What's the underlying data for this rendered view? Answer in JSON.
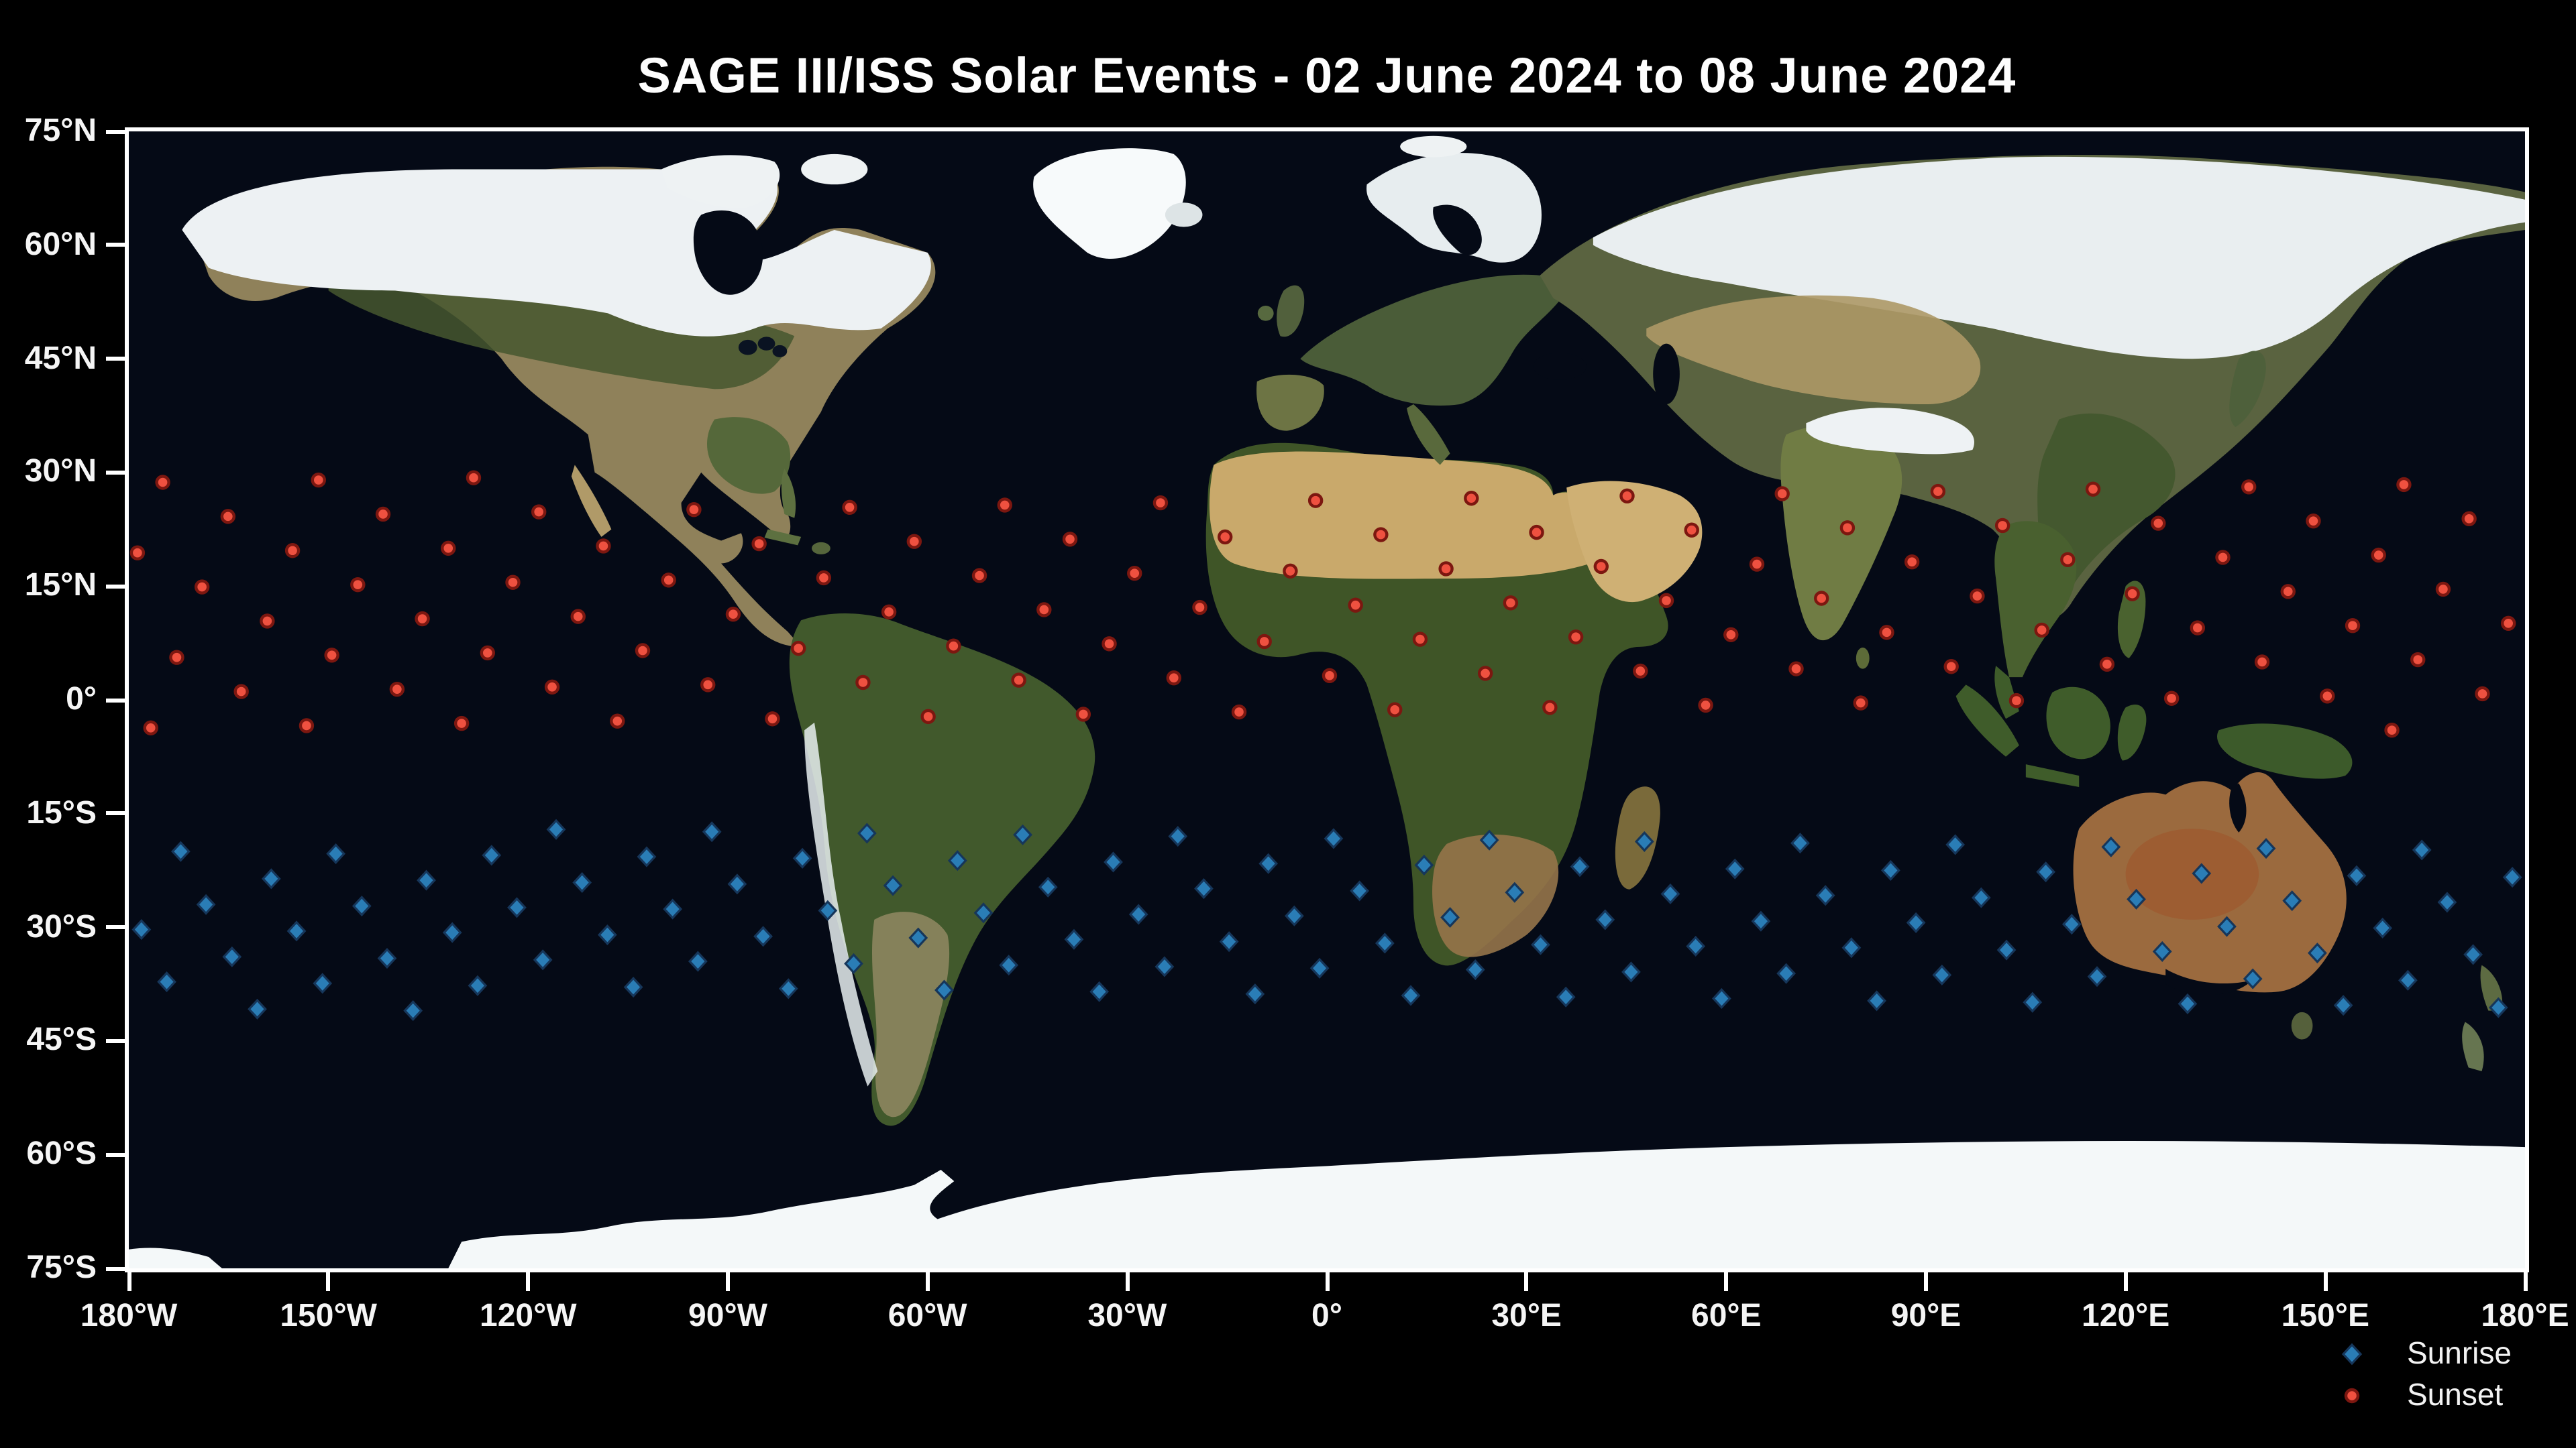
{
  "title": "SAGE III/ISS Solar Events - 02 June 2024 to 08 June 2024",
  "colors": {
    "background": "#000000",
    "ocean": "#050a16",
    "frame": "#ffffff",
    "tick_text": "#f5f5f5",
    "sunrise_fill": "#2a7db6",
    "sunrise_edge": "#16365a",
    "sunset_fill": "#ef5140",
    "sunset_edge": "#7c1710"
  },
  "chart_data": {
    "type": "scatter",
    "title": "SAGE III/ISS Solar Events - 02 June 2024 to 08 June 2024",
    "basemap": "blue-marble-satellite-world-map",
    "xlim": [
      -180,
      180
    ],
    "ylim": [
      -75,
      75
    ],
    "grid": false,
    "legend_position": "below-right-of-map",
    "x_tick_values": [
      -180,
      -150,
      -120,
      -90,
      -60,
      -30,
      0,
      30,
      60,
      90,
      120,
      150,
      180
    ],
    "x_ticks": [
      "180°W",
      "150°W",
      "120°W",
      "90°W",
      "60°W",
      "30°W",
      "0°",
      "30°E",
      "60°E",
      "90°E",
      "120°E",
      "150°E",
      "180°E"
    ],
    "y_tick_values": [
      75,
      60,
      45,
      30,
      15,
      0,
      -15,
      -30,
      -45,
      -60,
      -75
    ],
    "y_ticks": [
      "75°N",
      "60°N",
      "45°N",
      "30°N",
      "15°N",
      "0°",
      "15°S",
      "30°S",
      "45°S",
      "60°S",
      "75°S"
    ],
    "legend": [
      {
        "label": "Sunrise",
        "marker": "diamond",
        "color": "#2a7db6"
      },
      {
        "label": "Sunset",
        "marker": "circle",
        "color": "#ef5140"
      }
    ],
    "series": [
      {
        "name": "Sunset",
        "marker": "circle",
        "fill": "#ef5140",
        "edge": "#7c1710",
        "points": [
          [
            -128.2,
            29.3
          ],
          [
            -151.5,
            29.0
          ],
          [
            -174.9,
            28.7
          ],
          [
            161.8,
            28.4
          ],
          [
            138.5,
            28.1
          ],
          [
            115.1,
            27.8
          ],
          [
            91.8,
            27.5
          ],
          [
            68.4,
            27.2
          ],
          [
            45.1,
            26.9
          ],
          [
            21.7,
            26.6
          ],
          [
            -1.7,
            26.3
          ],
          [
            -25.0,
            26.0
          ],
          [
            -48.4,
            25.7
          ],
          [
            -71.7,
            25.4
          ],
          [
            -95.1,
            25.1
          ],
          [
            -118.4,
            24.8
          ],
          [
            -141.8,
            24.5
          ],
          [
            -165.1,
            24.2
          ],
          [
            171.6,
            23.9
          ],
          [
            148.2,
            23.6
          ],
          [
            124.9,
            23.3
          ],
          [
            101.5,
            23.0
          ],
          [
            78.2,
            22.7
          ],
          [
            54.8,
            22.4
          ],
          [
            31.5,
            22.1
          ],
          [
            8.1,
            21.8
          ],
          [
            -15.3,
            21.5
          ],
          [
            -38.6,
            21.2
          ],
          [
            -62.0,
            20.9
          ],
          [
            -85.3,
            20.6
          ],
          [
            -108.7,
            20.3
          ],
          [
            -132.0,
            20.0
          ],
          [
            -155.4,
            19.7
          ],
          [
            -178.7,
            19.4
          ],
          [
            158.0,
            19.1
          ],
          [
            134.6,
            18.8
          ],
          [
            111.3,
            18.5
          ],
          [
            87.9,
            18.2
          ],
          [
            64.6,
            17.9
          ],
          [
            41.2,
            17.6
          ],
          [
            17.9,
            17.3
          ],
          [
            -5.5,
            17.0
          ],
          [
            -28.9,
            16.7
          ],
          [
            -52.2,
            16.4
          ],
          [
            -75.6,
            16.1
          ],
          [
            -98.9,
            15.8
          ],
          [
            -122.3,
            15.5
          ],
          [
            -145.6,
            15.2
          ],
          [
            -169.0,
            14.9
          ],
          [
            167.7,
            14.6
          ],
          [
            144.4,
            14.3
          ],
          [
            121.0,
            14.0
          ],
          [
            97.7,
            13.7
          ],
          [
            74.3,
            13.4
          ],
          [
            51.0,
            13.1
          ],
          [
            27.6,
            12.8
          ],
          [
            4.3,
            12.5
          ],
          [
            -19.1,
            12.2
          ],
          [
            -42.5,
            11.9
          ],
          [
            -65.8,
            11.6
          ],
          [
            -89.2,
            11.3
          ],
          [
            -112.5,
            11.0
          ],
          [
            -135.9,
            10.7
          ],
          [
            -159.2,
            10.4
          ],
          [
            177.5,
            10.1
          ],
          [
            154.1,
            9.8
          ],
          [
            130.8,
            9.5
          ],
          [
            107.4,
            9.2
          ],
          [
            84.1,
            8.9
          ],
          [
            60.7,
            8.6
          ],
          [
            37.4,
            8.3
          ],
          [
            14.0,
            8.0
          ],
          [
            -9.4,
            7.7
          ],
          [
            -32.7,
            7.4
          ],
          [
            -56.1,
            7.1
          ],
          [
            -79.4,
            6.8
          ],
          [
            -102.8,
            6.5
          ],
          [
            -126.1,
            6.2
          ],
          [
            -149.5,
            5.9
          ],
          [
            -172.8,
            5.6
          ],
          [
            163.9,
            5.3
          ],
          [
            140.5,
            5.0
          ],
          [
            117.2,
            4.7
          ],
          [
            93.8,
            4.4
          ],
          [
            70.5,
            4.1
          ],
          [
            47.1,
            3.8
          ],
          [
            23.8,
            3.5
          ],
          [
            0.4,
            3.2
          ],
          [
            -23.0,
            2.9
          ],
          [
            -46.3,
            2.6
          ],
          [
            -69.7,
            2.3
          ],
          [
            -93.0,
            2.0
          ],
          [
            -116.4,
            1.7
          ],
          [
            -139.7,
            1.4
          ],
          [
            -163.1,
            1.1
          ],
          [
            173.6,
            0.8
          ],
          [
            150.3,
            0.5
          ],
          [
            126.9,
            0.2
          ],
          [
            103.6,
            -0.1
          ],
          [
            80.2,
            -0.4
          ],
          [
            56.9,
            -0.7
          ],
          [
            33.5,
            -1.0
          ],
          [
            10.2,
            -1.3
          ],
          [
            -13.2,
            -1.6
          ],
          [
            -36.6,
            -1.9
          ],
          [
            -59.9,
            -2.2
          ],
          [
            -83.3,
            -2.5
          ],
          [
            -106.6,
            -2.8
          ],
          [
            -130.0,
            -3.1
          ],
          [
            -153.3,
            -3.4
          ],
          [
            -176.7,
            -3.7
          ],
          [
            160.0,
            -4.0
          ]
        ]
      },
      {
        "name": "Sunrise",
        "marker": "diamond",
        "fill": "#2a7db6",
        "edge": "#16365a",
        "points": [
          [
            -137.3,
            -41.0
          ],
          [
            -160.7,
            -40.8
          ],
          [
            176.0,
            -40.6
          ],
          [
            152.7,
            -40.3
          ],
          [
            129.3,
            -40.1
          ],
          [
            106.0,
            -39.9
          ],
          [
            82.6,
            -39.7
          ],
          [
            59.3,
            -39.4
          ],
          [
            35.9,
            -39.2
          ],
          [
            12.6,
            -39.0
          ],
          [
            -10.8,
            -38.8
          ],
          [
            -34.2,
            -38.5
          ],
          [
            -57.5,
            -38.3
          ],
          [
            -80.9,
            -38.1
          ],
          [
            -104.2,
            -37.9
          ],
          [
            -127.6,
            -37.7
          ],
          [
            -150.9,
            -37.4
          ],
          [
            -174.3,
            -37.2
          ],
          [
            162.4,
            -37.0
          ],
          [
            139.1,
            -36.8
          ],
          [
            115.7,
            -36.5
          ],
          [
            92.4,
            -36.3
          ],
          [
            69.0,
            -36.1
          ],
          [
            45.7,
            -35.9
          ],
          [
            22.3,
            -35.6
          ],
          [
            -1.1,
            -35.4
          ],
          [
            -24.4,
            -35.2
          ],
          [
            -47.8,
            -35.0
          ],
          [
            -71.1,
            -34.8
          ],
          [
            -94.5,
            -34.5
          ],
          [
            -117.8,
            -34.3
          ],
          [
            -141.2,
            -34.1
          ],
          [
            -164.5,
            -33.9
          ],
          [
            172.2,
            -33.6
          ],
          [
            148.8,
            -33.4
          ],
          [
            125.5,
            -33.2
          ],
          [
            102.1,
            -33.0
          ],
          [
            78.8,
            -32.7
          ],
          [
            55.4,
            -32.5
          ],
          [
            32.1,
            -32.3
          ],
          [
            8.7,
            -32.1
          ],
          [
            -14.7,
            -31.9
          ],
          [
            -38.0,
            -31.6
          ],
          [
            -61.4,
            -31.4
          ],
          [
            -84.7,
            -31.2
          ],
          [
            -108.1,
            -31.0
          ],
          [
            -131.4,
            -30.7
          ],
          [
            -154.8,
            -30.5
          ],
          [
            -178.1,
            -30.3
          ],
          [
            158.6,
            -30.1
          ],
          [
            135.2,
            -29.9
          ],
          [
            111.9,
            -29.6
          ],
          [
            88.5,
            -29.4
          ],
          [
            65.2,
            -29.2
          ],
          [
            41.8,
            -29.0
          ],
          [
            18.5,
            -28.7
          ],
          [
            -4.9,
            -28.5
          ],
          [
            -28.3,
            -28.3
          ],
          [
            -51.6,
            -28.1
          ],
          [
            -75.0,
            -27.8
          ],
          [
            -98.3,
            -27.6
          ],
          [
            -121.7,
            -27.4
          ],
          [
            -145.0,
            -27.2
          ],
          [
            -168.4,
            -27.0
          ],
          [
            168.3,
            -26.7
          ],
          [
            145.0,
            -26.5
          ],
          [
            121.6,
            -26.3
          ],
          [
            98.3,
            -26.1
          ],
          [
            74.9,
            -25.8
          ],
          [
            51.6,
            -25.6
          ],
          [
            28.2,
            -25.4
          ],
          [
            4.9,
            -25.2
          ],
          [
            -18.5,
            -24.9
          ],
          [
            -41.9,
            -24.7
          ],
          [
            -65.2,
            -24.5
          ],
          [
            -88.6,
            -24.3
          ],
          [
            -111.9,
            -24.1
          ],
          [
            -135.3,
            -23.8
          ],
          [
            -158.6,
            -23.6
          ],
          [
            178.1,
            -23.4
          ],
          [
            154.7,
            -23.2
          ],
          [
            131.4,
            -22.9
          ],
          [
            108.0,
            -22.7
          ],
          [
            84.7,
            -22.5
          ],
          [
            61.3,
            -22.3
          ],
          [
            38.0,
            -22.0
          ],
          [
            14.6,
            -21.8
          ],
          [
            -8.8,
            -21.6
          ],
          [
            -32.1,
            -21.4
          ],
          [
            -55.5,
            -21.2
          ],
          [
            -78.8,
            -20.9
          ],
          [
            -102.2,
            -20.7
          ],
          [
            -125.5,
            -20.5
          ],
          [
            -148.9,
            -20.3
          ],
          [
            -172.2,
            -20.0
          ],
          [
            164.5,
            -19.8
          ],
          [
            141.1,
            -19.6
          ],
          [
            117.8,
            -19.4
          ],
          [
            94.4,
            -19.1
          ],
          [
            71.1,
            -18.9
          ],
          [
            47.7,
            -18.7
          ],
          [
            24.4,
            -18.5
          ],
          [
            1.0,
            -18.3
          ],
          [
            -22.4,
            -18.0
          ],
          [
            -45.7,
            -17.8
          ],
          [
            -69.1,
            -17.6
          ],
          [
            -92.4,
            -17.4
          ],
          [
            -115.8,
            -17.1
          ]
        ]
      }
    ]
  }
}
